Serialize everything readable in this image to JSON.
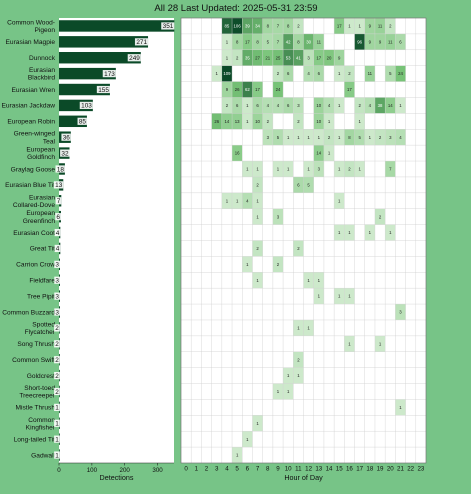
{
  "title": "All 28 Last Updated: 2025-05-31 23:59",
  "colors": {
    "page_background": "#77c487",
    "bar_fill": "#0b4a28",
    "bar_label_background": "#ffffff",
    "heat_low": "#e8f5e6",
    "heat_high": "#0b4a28",
    "grid_line": "#cfcfcf",
    "current_hour_label": "#d6e84a"
  },
  "chart_data": [
    {
      "type": "bar",
      "orientation": "horizontal",
      "xlabel": "Detections",
      "xlim": [
        0,
        350
      ],
      "xticks": [
        0,
        100,
        200,
        300
      ],
      "categories": [
        "Common Wood-\nPigeon",
        "Eurasian Magpie",
        "Dunnock",
        "Eurasian\nBlackbird",
        "Eurasian Wren",
        "Eurasian Jackdaw",
        "European Robin",
        "Green-winged\nTeal",
        "European\nGoldfinch",
        "Graylag Goose",
        "Eurasian Blue Tit",
        "Eurasian\nCollared-Dove",
        "European\nGreenfinch",
        "Eurasian Coot",
        "Great Tit",
        "Carrion Crow",
        "Fieldfare",
        "Tree Pipit",
        "Common Buzzard",
        "Spotted\nFlycatcher",
        "Song Thrush",
        "Common Swift",
        "Goldcrest",
        "Short-toed\nTreecreeper",
        "Mistle Thrush",
        "Common\nKingfisher",
        "Long-tailed Tit",
        "Gadwall"
      ],
      "values": [
        351,
        271,
        249,
        173,
        155,
        103,
        85,
        36,
        32,
        18,
        13,
        7,
        6,
        4,
        4,
        3,
        3,
        3,
        3,
        2,
        2,
        2,
        2,
        2,
        1,
        1,
        1,
        1
      ]
    },
    {
      "type": "heatmap",
      "xlabel": "Hour of Day",
      "hours": [
        0,
        1,
        2,
        3,
        4,
        5,
        6,
        7,
        8,
        9,
        10,
        11,
        12,
        13,
        14,
        15,
        16,
        17,
        18,
        19,
        20,
        21,
        22,
        23
      ],
      "current_hour": 23,
      "rows": [
        [
          0,
          0,
          0,
          0,
          85,
          106,
          39,
          34,
          8,
          7,
          8,
          2,
          0,
          0,
          0,
          17,
          1,
          1,
          9,
          11,
          2,
          0,
          0,
          0
        ],
        [
          0,
          0,
          0,
          0,
          1,
          8,
          17,
          8,
          5,
          7,
          42,
          8,
          30,
          11,
          0,
          0,
          0,
          96,
          9,
          9,
          11,
          6,
          0,
          0
        ],
        [
          0,
          0,
          0,
          0,
          1,
          2,
          35,
          27,
          21,
          25,
          53,
          41,
          3,
          17,
          20,
          9,
          0,
          0,
          0,
          0,
          0,
          0,
          0,
          0
        ],
        [
          0,
          0,
          0,
          1,
          109,
          0,
          0,
          0,
          0,
          2,
          6,
          0,
          4,
          6,
          0,
          1,
          2,
          0,
          11,
          0,
          5,
          24,
          0,
          0
        ],
        [
          0,
          0,
          0,
          0,
          9,
          26,
          62,
          17,
          0,
          24,
          0,
          0,
          0,
          0,
          0,
          0,
          17,
          0,
          0,
          0,
          0,
          0,
          0,
          0
        ],
        [
          0,
          0,
          0,
          0,
          2,
          6,
          1,
          6,
          4,
          4,
          6,
          3,
          0,
          10,
          4,
          1,
          0,
          2,
          4,
          38,
          14,
          1,
          0,
          0
        ],
        [
          0,
          0,
          0,
          26,
          14,
          13,
          1,
          10,
          2,
          0,
          0,
          2,
          0,
          10,
          1,
          0,
          0,
          1,
          0,
          0,
          0,
          0,
          0,
          0
        ],
        [
          0,
          0,
          0,
          0,
          0,
          0,
          0,
          0,
          3,
          5,
          1,
          1,
          1,
          1,
          2,
          1,
          8,
          5,
          1,
          2,
          3,
          4,
          0,
          0
        ],
        [
          0,
          0,
          0,
          0,
          0,
          16,
          0,
          0,
          0,
          0,
          0,
          0,
          0,
          14,
          1,
          0,
          0,
          0,
          0,
          0,
          0,
          0,
          0,
          0
        ],
        [
          0,
          0,
          0,
          0,
          0,
          0,
          1,
          1,
          0,
          1,
          1,
          0,
          1,
          3,
          0,
          1,
          2,
          1,
          0,
          0,
          7,
          0,
          0,
          0
        ],
        [
          0,
          0,
          0,
          0,
          0,
          0,
          0,
          2,
          0,
          0,
          0,
          6,
          5,
          0,
          0,
          0,
          0,
          0,
          0,
          0,
          0,
          0,
          0,
          0
        ],
        [
          0,
          0,
          0,
          0,
          1,
          1,
          4,
          1,
          0,
          0,
          0,
          0,
          0,
          0,
          0,
          1,
          0,
          0,
          0,
          0,
          0,
          0,
          0,
          0
        ],
        [
          0,
          0,
          0,
          0,
          0,
          0,
          0,
          1,
          0,
          3,
          0,
          0,
          0,
          0,
          0,
          0,
          0,
          0,
          0,
          2,
          0,
          0,
          0,
          0
        ],
        [
          0,
          0,
          0,
          0,
          0,
          0,
          0,
          0,
          0,
          0,
          0,
          0,
          0,
          0,
          0,
          1,
          1,
          0,
          1,
          0,
          1,
          0,
          0,
          0
        ],
        [
          0,
          0,
          0,
          0,
          0,
          0,
          0,
          2,
          0,
          0,
          0,
          2,
          0,
          0,
          0,
          0,
          0,
          0,
          0,
          0,
          0,
          0,
          0,
          0
        ],
        [
          0,
          0,
          0,
          0,
          0,
          0,
          1,
          0,
          0,
          2,
          0,
          0,
          0,
          0,
          0,
          0,
          0,
          0,
          0,
          0,
          0,
          0,
          0,
          0
        ],
        [
          0,
          0,
          0,
          0,
          0,
          0,
          0,
          1,
          0,
          0,
          0,
          0,
          1,
          1,
          0,
          0,
          0,
          0,
          0,
          0,
          0,
          0,
          0,
          0
        ],
        [
          0,
          0,
          0,
          0,
          0,
          0,
          0,
          0,
          0,
          0,
          0,
          0,
          0,
          1,
          0,
          1,
          1,
          0,
          0,
          0,
          0,
          0,
          0,
          0
        ],
        [
          0,
          0,
          0,
          0,
          0,
          0,
          0,
          0,
          0,
          0,
          0,
          0,
          0,
          0,
          0,
          0,
          0,
          0,
          0,
          0,
          0,
          3,
          0,
          0
        ],
        [
          0,
          0,
          0,
          0,
          0,
          0,
          0,
          0,
          0,
          0,
          0,
          1,
          1,
          0,
          0,
          0,
          0,
          0,
          0,
          0,
          0,
          0,
          0,
          0
        ],
        [
          0,
          0,
          0,
          0,
          0,
          0,
          0,
          0,
          0,
          0,
          0,
          0,
          0,
          0,
          0,
          0,
          1,
          0,
          0,
          1,
          0,
          0,
          0,
          0
        ],
        [
          0,
          0,
          0,
          0,
          0,
          0,
          0,
          0,
          0,
          0,
          0,
          2,
          0,
          0,
          0,
          0,
          0,
          0,
          0,
          0,
          0,
          0,
          0,
          0
        ],
        [
          0,
          0,
          0,
          0,
          0,
          0,
          0,
          0,
          0,
          0,
          1,
          1,
          0,
          0,
          0,
          0,
          0,
          0,
          0,
          0,
          0,
          0,
          0,
          0
        ],
        [
          0,
          0,
          0,
          0,
          0,
          0,
          0,
          0,
          0,
          1,
          1,
          0,
          0,
          0,
          0,
          0,
          0,
          0,
          0,
          0,
          0,
          0,
          0,
          0
        ],
        [
          0,
          0,
          0,
          0,
          0,
          0,
          0,
          0,
          0,
          0,
          0,
          0,
          0,
          0,
          0,
          0,
          0,
          0,
          0,
          0,
          0,
          1,
          0,
          0
        ],
        [
          0,
          0,
          0,
          0,
          0,
          0,
          0,
          1,
          0,
          0,
          0,
          0,
          0,
          0,
          0,
          0,
          0,
          0,
          0,
          0,
          0,
          0,
          0,
          0
        ],
        [
          0,
          0,
          0,
          0,
          0,
          0,
          1,
          0,
          0,
          0,
          0,
          0,
          0,
          0,
          0,
          0,
          0,
          0,
          0,
          0,
          0,
          0,
          0,
          0
        ],
        [
          0,
          0,
          0,
          0,
          0,
          1,
          0,
          0,
          0,
          0,
          0,
          0,
          0,
          0,
          0,
          0,
          0,
          0,
          0,
          0,
          0,
          0,
          0,
          0
        ]
      ]
    }
  ]
}
